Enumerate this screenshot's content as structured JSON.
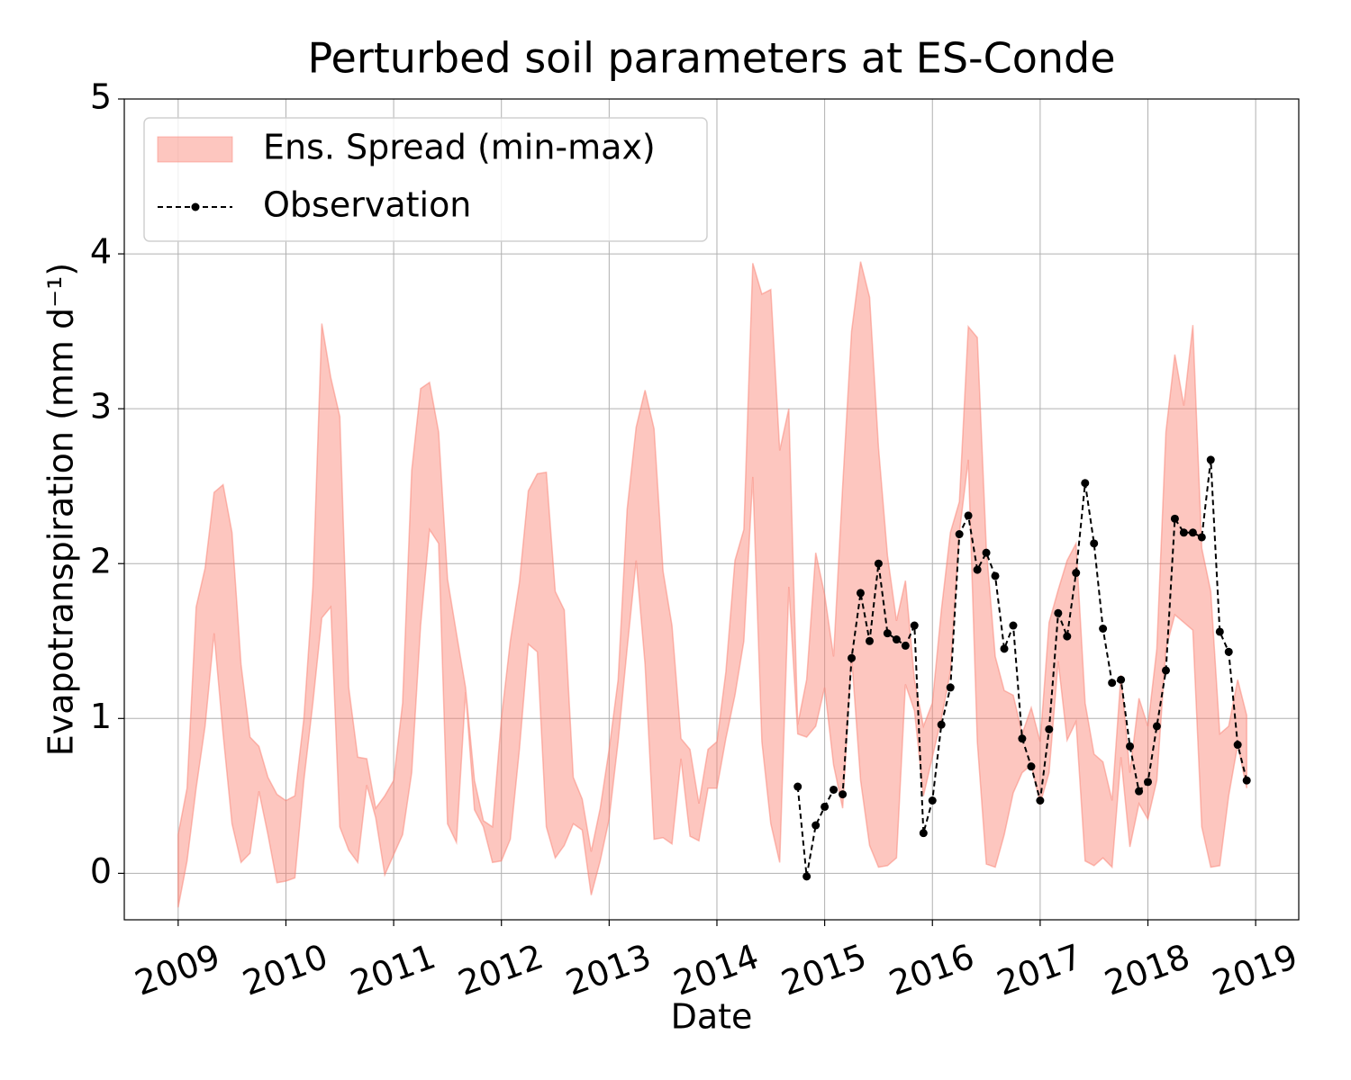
{
  "chart_data": {
    "type": "band_line",
    "title": "Perturbed soil parameters at ES-Conde",
    "xlabel": "Date",
    "ylabel": "Evapotranspiration  (mm d⁻¹)",
    "xlim": [
      2008.5,
      2019.4
    ],
    "xticks": [
      2009,
      2010,
      2011,
      2012,
      2013,
      2014,
      2015,
      2016,
      2017,
      2018,
      2019
    ],
    "ylim": [
      -0.3,
      5
    ],
    "yticks": [
      0,
      1,
      2,
      3,
      4,
      5
    ],
    "grid": true,
    "legend": "upper left",
    "series": [
      {
        "name": "Ens. Spread (min-max)",
        "color": "#fa8072",
        "x": [
          2009,
          2009.083,
          2009.167,
          2009.25,
          2009.333,
          2009.417,
          2009.5,
          2009.583,
          2009.667,
          2009.75,
          2009.833,
          2009.917,
          2010,
          2010.083,
          2010.167,
          2010.25,
          2010.333,
          2010.417,
          2010.5,
          2010.583,
          2010.667,
          2010.75,
          2010.833,
          2010.917,
          2011,
          2011.083,
          2011.167,
          2011.25,
          2011.333,
          2011.417,
          2011.5,
          2011.583,
          2011.667,
          2011.75,
          2011.833,
          2011.917,
          2012,
          2012.083,
          2012.167,
          2012.25,
          2012.333,
          2012.417,
          2012.5,
          2012.583,
          2012.667,
          2012.75,
          2012.833,
          2012.917,
          2013,
          2013.083,
          2013.167,
          2013.25,
          2013.333,
          2013.417,
          2013.5,
          2013.583,
          2013.667,
          2013.75,
          2013.833,
          2013.917,
          2014,
          2014.083,
          2014.167,
          2014.25,
          2014.333,
          2014.417,
          2014.5,
          2014.583,
          2014.667,
          2014.75,
          2014.833,
          2014.917,
          2015,
          2015.083,
          2015.167,
          2015.25,
          2015.333,
          2015.417,
          2015.5,
          2015.583,
          2015.667,
          2015.75,
          2015.833,
          2015.917,
          2016,
          2016.083,
          2016.167,
          2016.25,
          2016.333,
          2016.417,
          2016.5,
          2016.583,
          2016.667,
          2016.75,
          2016.833,
          2016.917,
          2017,
          2017.083,
          2017.167,
          2017.25,
          2017.333,
          2017.417,
          2017.5,
          2017.583,
          2017.667,
          2017.75,
          2017.833,
          2017.917,
          2018,
          2018.083,
          2018.167,
          2018.25,
          2018.333,
          2018.417,
          2018.5,
          2018.583,
          2018.667,
          2018.75,
          2018.833,
          2018.917
        ],
        "upper": [
          0.25,
          0.55,
          1.72,
          1.97,
          2.46,
          2.51,
          2.2,
          1.35,
          0.88,
          0.82,
          0.62,
          0.51,
          0.47,
          0.5,
          1.0,
          1.85,
          3.55,
          3.2,
          2.95,
          1.2,
          0.75,
          0.74,
          0.42,
          0.5,
          0.6,
          1.1,
          2.6,
          3.13,
          3.17,
          2.85,
          1.9,
          1.55,
          1.2,
          0.6,
          0.34,
          0.3,
          1.0,
          1.5,
          1.88,
          2.47,
          2.58,
          2.59,
          1.82,
          1.7,
          0.62,
          0.48,
          0.14,
          0.42,
          0.8,
          1.25,
          2.35,
          2.88,
          3.12,
          2.87,
          1.95,
          1.6,
          0.87,
          0.8,
          0.45,
          0.8,
          0.85,
          1.3,
          2.02,
          2.22,
          3.94,
          3.74,
          3.77,
          2.73,
          3.0,
          0.96,
          1.25,
          2.07,
          1.8,
          1.4,
          2.5,
          3.5,
          3.95,
          3.72,
          2.75,
          2.05,
          1.63,
          1.89,
          1.25,
          0.95,
          1.1,
          1.7,
          2.2,
          2.4,
          3.53,
          3.46,
          2.1,
          1.4,
          1.18,
          1.15,
          0.9,
          1.07,
          0.85,
          1.62,
          1.83,
          2.02,
          2.13,
          1.1,
          0.77,
          0.72,
          0.47,
          1.28,
          0.65,
          1.13,
          0.95,
          1.45,
          2.85,
          3.35,
          3.02,
          3.54,
          2.1,
          1.82,
          0.9,
          0.95,
          1.25,
          1.02
        ],
        "lower": [
          -0.22,
          0.08,
          0.55,
          0.95,
          1.55,
          0.9,
          0.32,
          0.07,
          0.13,
          0.53,
          0.25,
          -0.06,
          -0.05,
          -0.03,
          0.6,
          1.1,
          1.65,
          1.72,
          0.3,
          0.15,
          0.07,
          0.57,
          0.36,
          -0.01,
          0.12,
          0.25,
          0.65,
          1.6,
          2.22,
          2.13,
          0.32,
          0.2,
          1.17,
          0.41,
          0.3,
          0.07,
          0.08,
          0.22,
          0.8,
          1.48,
          1.43,
          0.3,
          0.1,
          0.18,
          0.32,
          0.28,
          -0.14,
          0.08,
          0.35,
          0.85,
          1.45,
          2.02,
          1.35,
          0.22,
          0.23,
          0.19,
          0.74,
          0.24,
          0.21,
          0.55,
          0.55,
          0.87,
          1.15,
          1.5,
          2.56,
          0.85,
          0.32,
          0.07,
          1.85,
          0.9,
          0.88,
          0.95,
          1.2,
          0.7,
          0.42,
          1.4,
          0.6,
          0.18,
          0.04,
          0.05,
          0.1,
          1.22,
          1.05,
          0.5,
          0.75,
          1.0,
          1.3,
          2.2,
          2.67,
          0.85,
          0.06,
          0.04,
          0.25,
          0.52,
          0.65,
          0.7,
          0.45,
          0.65,
          1.37,
          0.86,
          0.98,
          0.08,
          0.05,
          0.1,
          0.04,
          0.75,
          0.17,
          0.45,
          0.35,
          0.6,
          1.45,
          1.67,
          1.62,
          1.57,
          0.3,
          0.04,
          0.05,
          0.5,
          0.83,
          0.55
        ]
      },
      {
        "name": "Observation",
        "color": "#000000",
        "line_style": "dashed",
        "x": [
          2014.75,
          2014.833,
          2014.917,
          2015,
          2015.083,
          2015.167,
          2015.25,
          2015.333,
          2015.417,
          2015.5,
          2015.583,
          2015.667,
          2015.75,
          2015.833,
          2015.917,
          2016,
          2016.083,
          2016.167,
          2016.25,
          2016.333,
          2016.417,
          2016.5,
          2016.583,
          2016.667,
          2016.75,
          2016.833,
          2016.917,
          2017,
          2017.083,
          2017.167,
          2017.25,
          2017.333,
          2017.417,
          2017.5,
          2017.583,
          2017.667,
          2017.75,
          2017.833,
          2017.917,
          2018,
          2018.083,
          2018.167,
          2018.25,
          2018.333,
          2018.417,
          2018.5,
          2018.583,
          2018.667,
          2018.75,
          2018.833,
          2018.917
        ],
        "values": [
          0.56,
          -0.02,
          0.31,
          0.43,
          0.54,
          0.51,
          1.39,
          1.81,
          1.5,
          2.0,
          1.55,
          1.51,
          1.47,
          1.6,
          0.26,
          0.47,
          0.96,
          1.2,
          2.19,
          2.31,
          1.96,
          2.07,
          1.92,
          1.45,
          1.6,
          0.87,
          0.69,
          0.47,
          0.93,
          1.68,
          1.53,
          1.94,
          2.52,
          2.13,
          1.58,
          1.23,
          1.25,
          0.82,
          0.53,
          0.59,
          0.95,
          1.31,
          2.29,
          2.2,
          2.2,
          2.17,
          2.67,
          1.56,
          1.43,
          0.83,
          0.6
        ]
      }
    ]
  }
}
